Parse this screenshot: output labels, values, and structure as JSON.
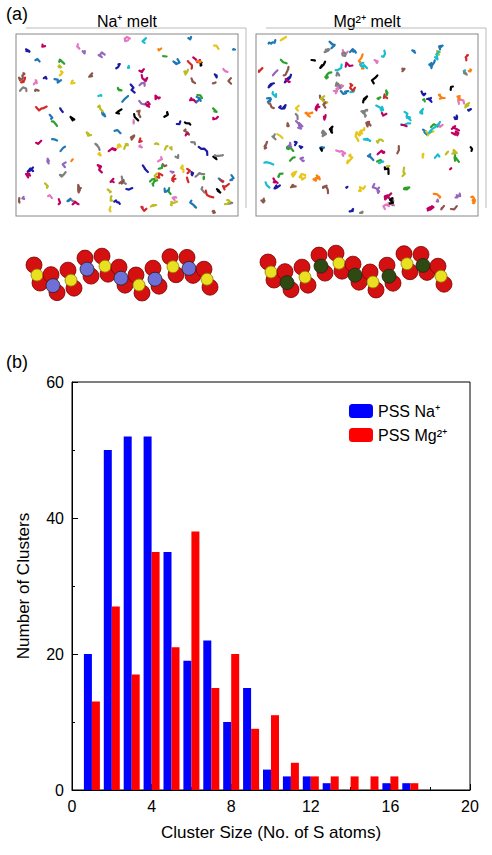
{
  "panel_a": {
    "label": "(a)",
    "images": [
      "Na⁺ melt",
      "Mg²⁺ melt"
    ]
  },
  "panel_b": {
    "label": "(b)"
  },
  "chart_data": {
    "type": "bar",
    "x_label": "Cluster Size (No. of S atoms)",
    "y_label": "Number of Clusters",
    "x": [
      1,
      2,
      3,
      4,
      5,
      6,
      7,
      8,
      9,
      10,
      11,
      12,
      13,
      14,
      15,
      16,
      17
    ],
    "series": [
      {
        "name": "PSS Na⁺",
        "color": "#0000ff",
        "values": [
          20,
          50,
          52,
          52,
          35,
          19,
          22,
          10,
          15,
          3,
          2,
          2,
          1,
          0,
          0,
          1,
          1
        ]
      },
      {
        "name": "PSS Mg²⁺",
        "color": "#ff0000",
        "values": [
          13,
          27,
          17,
          35,
          21,
          38,
          15,
          20,
          9,
          11,
          4,
          2,
          2,
          2,
          2,
          2,
          1
        ]
      }
    ],
    "xlim": [
      0,
      20
    ],
    "xticks": [
      0,
      4,
      8,
      12,
      16,
      20
    ],
    "ylim": [
      0,
      60
    ],
    "yticks": [
      0,
      20,
      40,
      60
    ],
    "legend": "top-right",
    "grid": false
  }
}
